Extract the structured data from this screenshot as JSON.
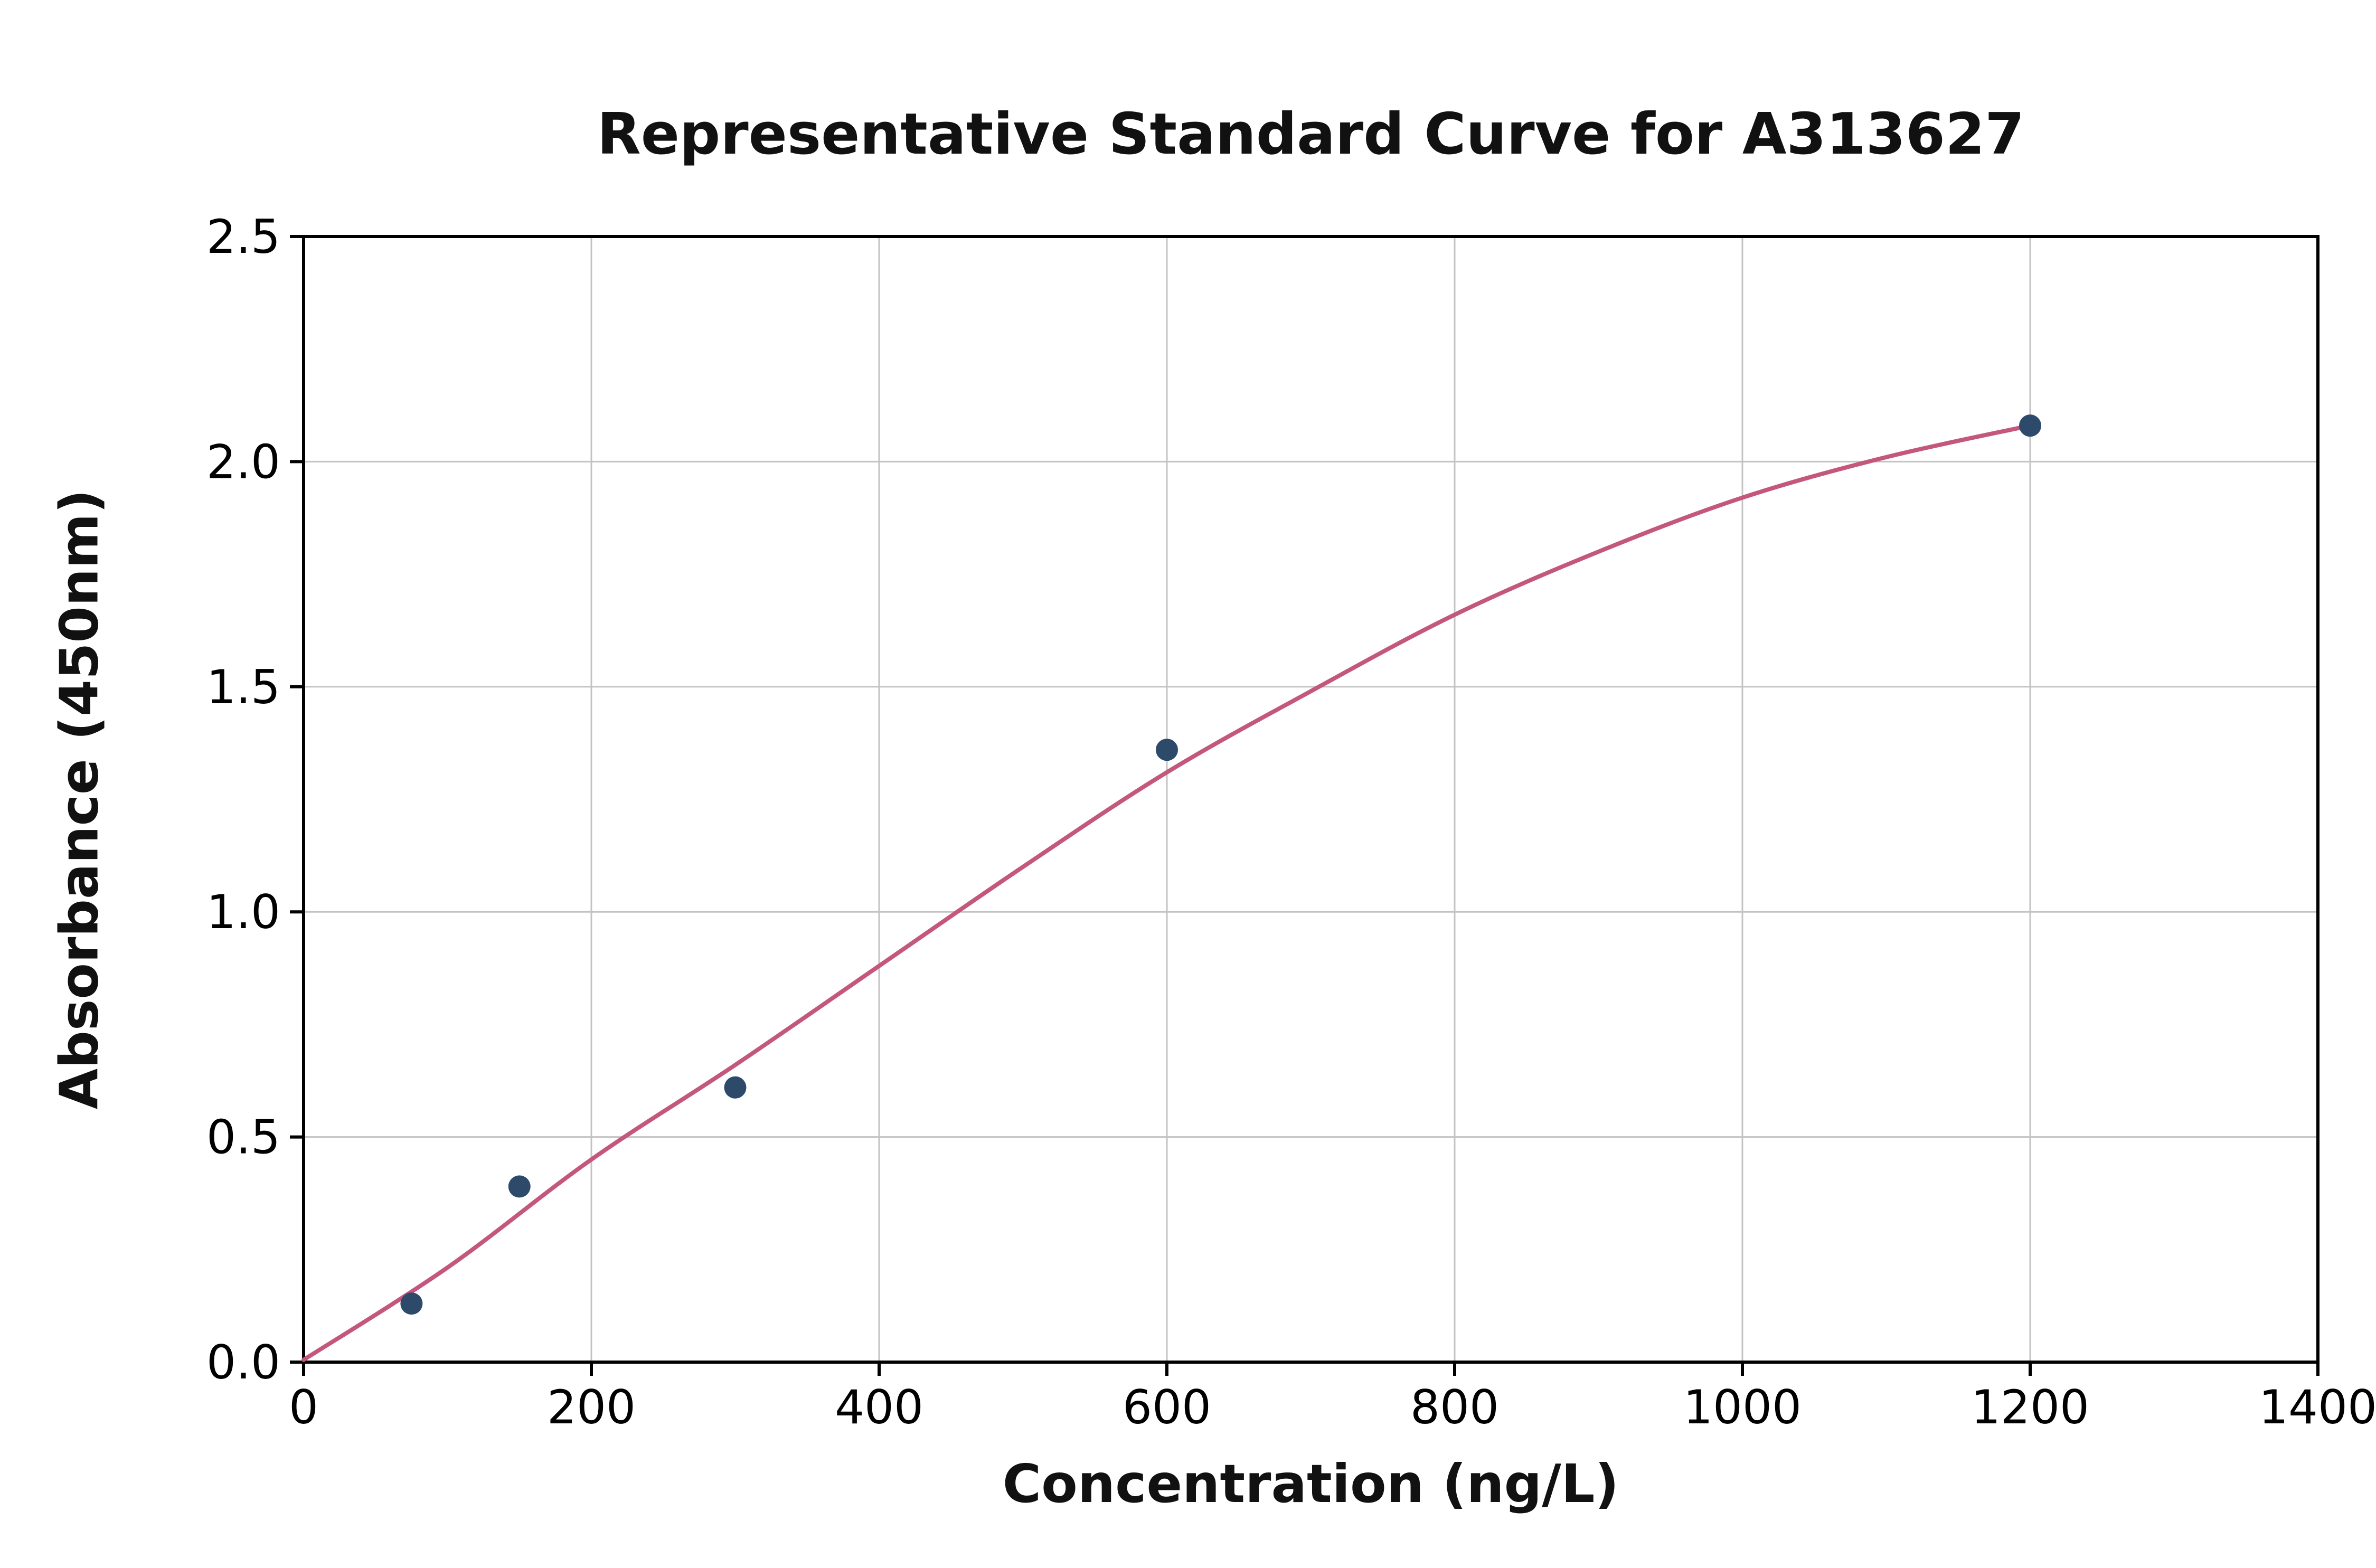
{
  "chart_data": {
    "type": "scatter",
    "title": "Representative Standard Curve for A313627",
    "xlabel": "Concentration (ng/L)",
    "ylabel": "Absorbance (450nm)",
    "xlim": [
      0,
      1400
    ],
    "ylim": [
      0,
      2.5
    ],
    "xticks": [
      0,
      200,
      400,
      600,
      800,
      1000,
      1200,
      1400
    ],
    "xtick_labels": [
      "0",
      "200",
      "400",
      "600",
      "800",
      "1000",
      "1200",
      "1400"
    ],
    "yticks": [
      0,
      0.5,
      1.0,
      1.5,
      2.0,
      2.5
    ],
    "ytick_labels": [
      "0.0",
      "0.5",
      "1.0",
      "1.5",
      "2.0",
      "2.5"
    ],
    "grid": true,
    "legend": "none",
    "points": [
      [
        75,
        0.13
      ],
      [
        150,
        0.39
      ],
      [
        300,
        0.61
      ],
      [
        600,
        1.36
      ],
      [
        1200,
        2.08
      ]
    ],
    "curve": [
      [
        0,
        0.005
      ],
      [
        100,
        0.21
      ],
      [
        200,
        0.45
      ],
      [
        300,
        0.66
      ],
      [
        400,
        0.88
      ],
      [
        500,
        1.1
      ],
      [
        600,
        1.31
      ],
      [
        700,
        1.49
      ],
      [
        800,
        1.66
      ],
      [
        900,
        1.8
      ],
      [
        1000,
        1.92
      ],
      [
        1100,
        2.01
      ],
      [
        1200,
        2.08
      ]
    ],
    "colors": {
      "point": "#2e4a6b",
      "curve": "#c4577e",
      "grid": "#c3c3c3",
      "axis": "#000000",
      "background": "#ffffff"
    }
  }
}
